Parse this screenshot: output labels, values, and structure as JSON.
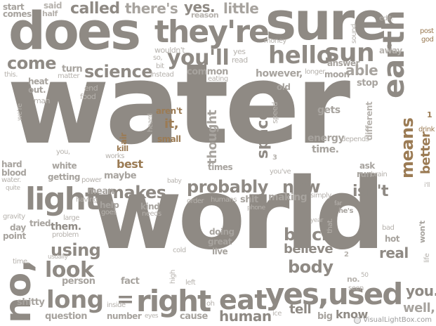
{
  "words": {
    "water": "water",
    "world": "world",
    "does": "does",
    "sure": "sure",
    "they_re": "they're",
    "hello": "hello",
    "sun": "sun",
    "earth": "earth",
    "you_ll": "you'll",
    "come": "come",
    "science": "science",
    "light": "light",
    "no": "no,",
    "right": "right",
    "long": "long",
    "eat": "eat",
    "yes_used": "yes,used",
    "called": "called",
    "there_s": "there's",
    "yes": "yes.",
    "little": "little",
    "makes": "makes",
    "probably": "probably",
    "new": "new",
    "isn_t": "isn't",
    "means": "means",
    "better": "better",
    "space": "space",
    "thought": "thought",
    "black": "black",
    "believe": "believe",
    "body": "body",
    "real": "real",
    "look": "look",
    "using": "using",
    "you": "you.",
    "well": "well,",
    "tell": "tell",
    "human": "human",
    "know": "know",
    "able": "able",
    "answer": "answer",
    "however": "however,",
    "energy": "energy",
    "time": "time.",
    "gets": "gets",
    "different": "different",
    "start": "start",
    "comes": "comes",
    "said": "said",
    "half": "half",
    "reason": "reason",
    "money": "money",
    "sound": "sound",
    "edit": "edit:",
    "post": "post",
    "god": "god",
    "away": "away",
    "wouldn_t": "wouldn't",
    "yes2": "yes",
    "read": "read",
    "common": "common",
    "instead": "instead",
    "eating": "eating",
    "moon": "moon",
    "longer": "longer",
    "turn": "turn",
    "matter": "matter",
    "this": "this.",
    "heat": "heat",
    "out": "out.",
    "end": "end",
    "food": "food",
    "man": "man",
    "we_re": "we're",
    "old": "old",
    "stop": "stop",
    "speed": "speed",
    "aren_t": "aren't",
    "it": "it,",
    "small": "small",
    "heard": "heard",
    "air": "air",
    "kill": "kill",
    "works": "works",
    "best": "best",
    "maybe": "maybe",
    "times": "times",
    "you_ve": "you've",
    "ask": "ask",
    "run": "run",
    "brain": "brain",
    "depends": "depends",
    "drink": "drink",
    "one": "1",
    "three": "3",
    "hard": "hard",
    "blood": "blood",
    "water2": "water.",
    "white": "white",
    "getting": "getting",
    "power": "power",
    "baby": "baby",
    "you2": "you,",
    "quite": "quite",
    "mean": "mean",
    "having": "having",
    "help": "help",
    "goes": "goes",
    "kind": "kind",
    "needs": "needs",
    "order": "order",
    "humans": "humans",
    "shit": "shit",
    "phone": "phone",
    "making": "making",
    "simply": "simply",
    "i_ll": "i'll",
    "far": "far",
    "he_s": "he's",
    "that": "that.",
    "gravity": "gravity",
    "day": "day",
    "tried": "tried",
    "large": "large",
    "them": "them.",
    "point": "point",
    "problem": "problem",
    "year": "year",
    "bad": "bad",
    "hot": "hot",
    "won_t": "won't",
    "life": "life",
    "doing": "doing",
    "great": "great",
    "live": "live",
    "two": "2",
    "time2": "time,",
    "usually": "usually",
    "cold": "cold",
    "high": "high",
    "left": "left",
    "person": "person",
    "fact": "fact",
    "no2": "no.",
    "seen": "seen",
    "shitty": "shitty",
    "question": "question",
    "inside": "inside",
    "number": "number",
    "eyes": "eyes",
    "oh": "oh",
    "cause": "cause",
    "ice": "ice",
    "big": "big",
    "so": "so,",
    "bit": "bit",
    "fifty": "50"
  },
  "watermark": {
    "text": "VisualLightBox.com"
  },
  "colors": {
    "primary": "#8f8a84",
    "secondary": "#a7a39e",
    "tertiary": "#b6b2ad",
    "accent_brown": "#9b7b54",
    "background": "#ffffff"
  }
}
